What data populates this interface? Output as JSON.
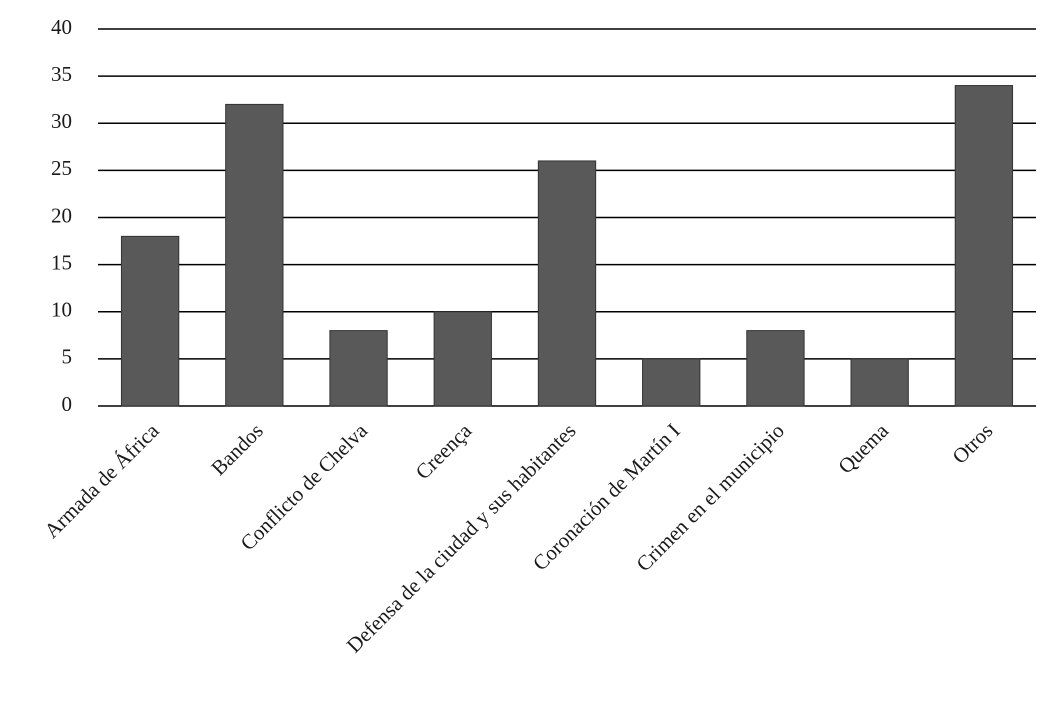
{
  "chart_data": {
    "type": "bar",
    "categories": [
      "Armada de África",
      "Bandos",
      "Conflicto de Chelva",
      "Creença",
      "Defensa de la ciudad y sus habitantes",
      "Coronación de Martín I",
      "Crimen en el municipio",
      "Quema",
      "Otros"
    ],
    "values": [
      18,
      32,
      8,
      10,
      26,
      5,
      8,
      5,
      34
    ],
    "color": "#595959",
    "ylim": [
      0,
      40
    ],
    "yticks": [
      0,
      5,
      10,
      15,
      20,
      25,
      30,
      35,
      40
    ],
    "grid": true
  }
}
